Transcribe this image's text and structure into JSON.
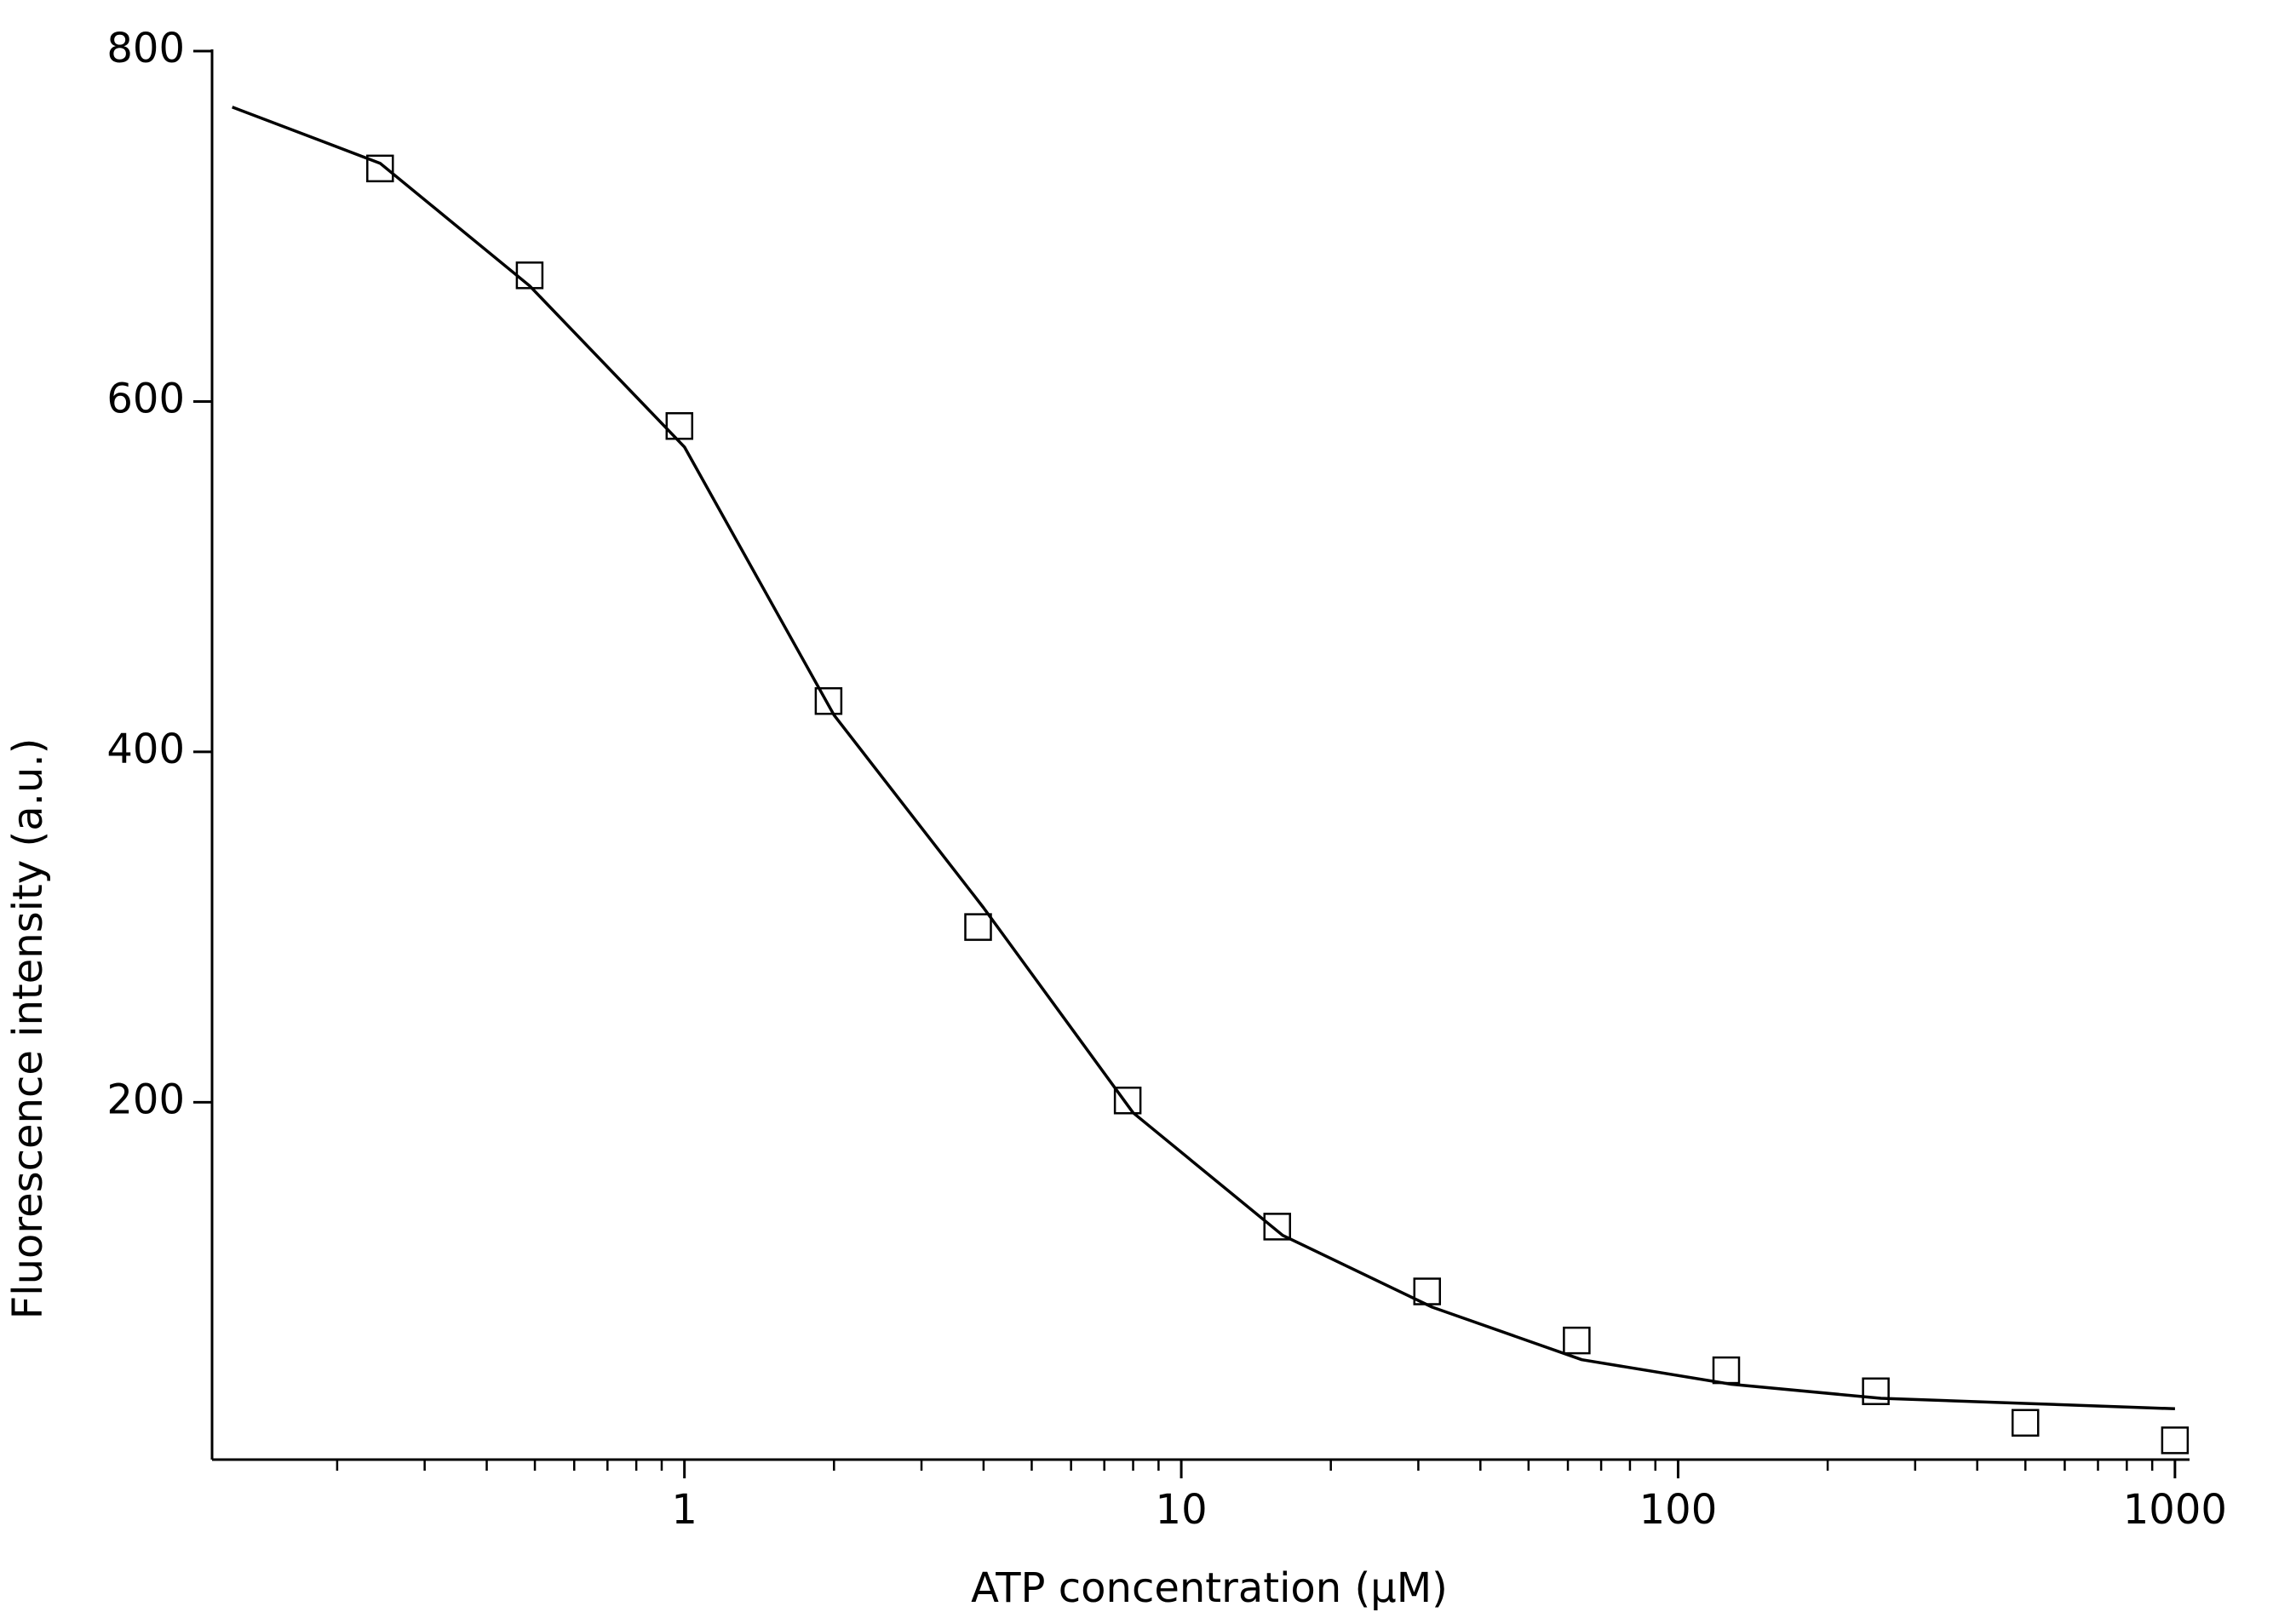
{
  "chart_data": {
    "type": "scatter",
    "x_label": "ATP concentration (µM)",
    "y_label": "Fluorescence intensity (a.u.)",
    "xscale": "log",
    "xlim": [
      0.112,
      1070
    ],
    "ylim": [
      -4,
      800
    ],
    "xticks": [
      1,
      10,
      100,
      1000
    ],
    "xminorticks": [
      0.2,
      0.3,
      0.4,
      0.5,
      0.6,
      0.7,
      0.8,
      0.9,
      2,
      3,
      4,
      5,
      6,
      7,
      8,
      9,
      20,
      30,
      40,
      50,
      60,
      70,
      80,
      90,
      200,
      300,
      400,
      500,
      600,
      700,
      800,
      900
    ],
    "yticks": [
      200,
      400,
      600,
      800
    ],
    "grid": false,
    "series": [
      {
        "style": "markers",
        "marker": "square",
        "color": "#000000",
        "x": [
          0.244,
          0.488,
          0.977,
          1.95,
          3.9,
          7.8,
          15.6,
          31.25,
          62.5,
          125,
          250,
          500,
          1000
        ],
        "values": [
          733,
          672,
          586,
          429,
          300,
          201,
          129,
          92,
          64,
          47,
          35,
          17,
          7
        ]
      },
      {
        "style": "line",
        "color": "#000000",
        "x": [
          0.123,
          0.244,
          0.488,
          1,
          2,
          4,
          8,
          16,
          32,
          64,
          128,
          256,
          512,
          1000
        ],
        "values": [
          768,
          736,
          666,
          574,
          421,
          311,
          194,
          124,
          83,
          53,
          39,
          31,
          28,
          25
        ]
      }
    ]
  }
}
